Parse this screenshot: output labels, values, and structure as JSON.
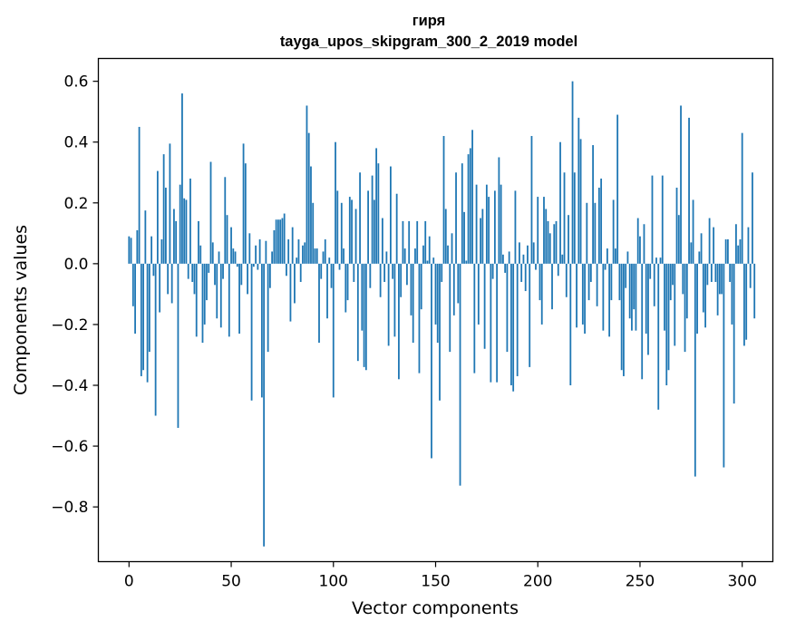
{
  "chart_data": {
    "type": "bar",
    "title": "гиря",
    "subtitle": "tayga_upos_skipgram_300_2_2019 model",
    "xlabel": "Vector components",
    "ylabel": "Components values",
    "xlim": [
      -15,
      315
    ],
    "ylim": [
      -0.98,
      0.675
    ],
    "xticks": [
      0,
      50,
      100,
      150,
      200,
      250,
      300
    ],
    "yticks": [
      -0.8,
      -0.6,
      -0.4,
      -0.2,
      0.0,
      0.2,
      0.4,
      0.6
    ],
    "ytick_labels": [
      "−0.8",
      "−0.6",
      "−0.4",
      "−0.2",
      "0.0",
      "0.2",
      "0.4",
      "0.6"
    ],
    "xtick_labels": [
      "0",
      "50",
      "100",
      "150",
      "200",
      "250",
      "300"
    ],
    "grid": false,
    "bar_color": "#1f77b4",
    "values": [
      0.09,
      0.085,
      -0.14,
      -0.23,
      0.11,
      0.45,
      -0.37,
      -0.35,
      0.175,
      -0.39,
      -0.29,
      0.09,
      -0.04,
      -0.5,
      0.305,
      -0.16,
      0.08,
      0.36,
      0.25,
      -0.1,
      0.395,
      -0.13,
      0.18,
      0.14,
      -0.54,
      0.26,
      0.56,
      0.215,
      0.21,
      -0.05,
      0.28,
      -0.06,
      -0.1,
      -0.24,
      0.14,
      0.06,
      -0.26,
      -0.2,
      -0.12,
      -0.03,
      0.335,
      0.07,
      -0.07,
      -0.18,
      0.04,
      -0.21,
      -0.05,
      0.285,
      0.16,
      -0.24,
      0.12,
      0.05,
      0.04,
      -0.01,
      -0.23,
      -0.07,
      0.395,
      0.33,
      -0.1,
      0.1,
      -0.45,
      -0.01,
      0.06,
      -0.02,
      0.08,
      -0.44,
      -0.93,
      0.075,
      -0.29,
      -0.08,
      0.04,
      0.11,
      0.145,
      0.145,
      0.145,
      0.15,
      0.165,
      -0.04,
      0.08,
      -0.19,
      0.12,
      -0.13,
      0.02,
      0.08,
      -0.06,
      0.06,
      0.07,
      0.52,
      0.43,
      0.32,
      0.2,
      0.05,
      0.05,
      -0.26,
      -0.05,
      0.04,
      0.08,
      -0.18,
      0.02,
      -0.08,
      -0.44,
      0.4,
      0.24,
      -0.02,
      0.2,
      0.05,
      -0.16,
      -0.12,
      0.22,
      0.21,
      -0.06,
      0.18,
      -0.32,
      0.3,
      -0.22,
      -0.34,
      -0.35,
      0.24,
      -0.08,
      0.29,
      0.21,
      0.38,
      0.33,
      -0.11,
      0.15,
      -0.06,
      0.04,
      -0.27,
      0.32,
      -0.05,
      -0.24,
      0.23,
      -0.38,
      -0.11,
      0.14,
      0.05,
      -0.07,
      0.14,
      -0.17,
      -0.26,
      0.05,
      0.14,
      -0.36,
      -0.15,
      0.06,
      0.14,
      0.01,
      0.09,
      -0.64,
      0.02,
      -0.2,
      -0.26,
      -0.45,
      -0.06,
      0.42,
      0.18,
      0.06,
      -0.29,
      0.1,
      -0.17,
      0.3,
      -0.13,
      -0.73,
      0.33,
      0.17,
      0.01,
      0.36,
      0.38,
      0.44,
      -0.36,
      0.26,
      -0.2,
      0.15,
      0.18,
      -0.28,
      0.26,
      0.22,
      -0.39,
      -0.05,
      0.24,
      -0.39,
      0.35,
      0.26,
      0.03,
      -0.03,
      -0.29,
      0.04,
      -0.4,
      -0.42,
      0.24,
      -0.37,
      0.07,
      -0.06,
      0.03,
      -0.09,
      0.06,
      -0.34,
      0.42,
      0.07,
      -0.02,
      0.22,
      -0.12,
      -0.2,
      0.22,
      0.18,
      0.14,
      0.1,
      -0.15,
      0.13,
      0.14,
      -0.04,
      0.4,
      0.03,
      0.3,
      -0.11,
      0.16,
      -0.4,
      0.6,
      0.3,
      -0.21,
      0.48,
      0.41,
      -0.2,
      -0.23,
      0.2,
      -0.12,
      -0.06,
      0.39,
      0.2,
      -0.14,
      0.25,
      0.28,
      -0.22,
      -0.02,
      0.05,
      -0.24,
      -0.12,
      0.21,
      0.05,
      0.49,
      -0.12,
      -0.35,
      -0.37,
      -0.08,
      0.04,
      -0.18,
      -0.22,
      -0.15,
      -0.22,
      0.15,
      0.09,
      -0.38,
      0.13,
      -0.23,
      -0.3,
      -0.05,
      0.29,
      -0.14,
      0.02,
      -0.48,
      0.02,
      0.29,
      -0.22,
      -0.4,
      -0.35,
      -0.12,
      -0.07,
      -0.27,
      0.25,
      0.16,
      0.52,
      -0.1,
      -0.29,
      -0.18,
      0.48,
      0.07,
      0.21,
      -0.7,
      -0.23,
      0.04,
      0.1,
      -0.16,
      -0.21,
      -0.07,
      0.15,
      -0.06,
      0.12,
      -0.06,
      -0.17,
      -0.1,
      -0.1,
      -0.67,
      0.08,
      0.08,
      -0.06,
      -0.2,
      -0.46,
      0.13,
      0.06,
      0.08,
      0.43,
      -0.27,
      -0.25,
      0.12,
      -0.08,
      0.3,
      -0.18
    ]
  }
}
